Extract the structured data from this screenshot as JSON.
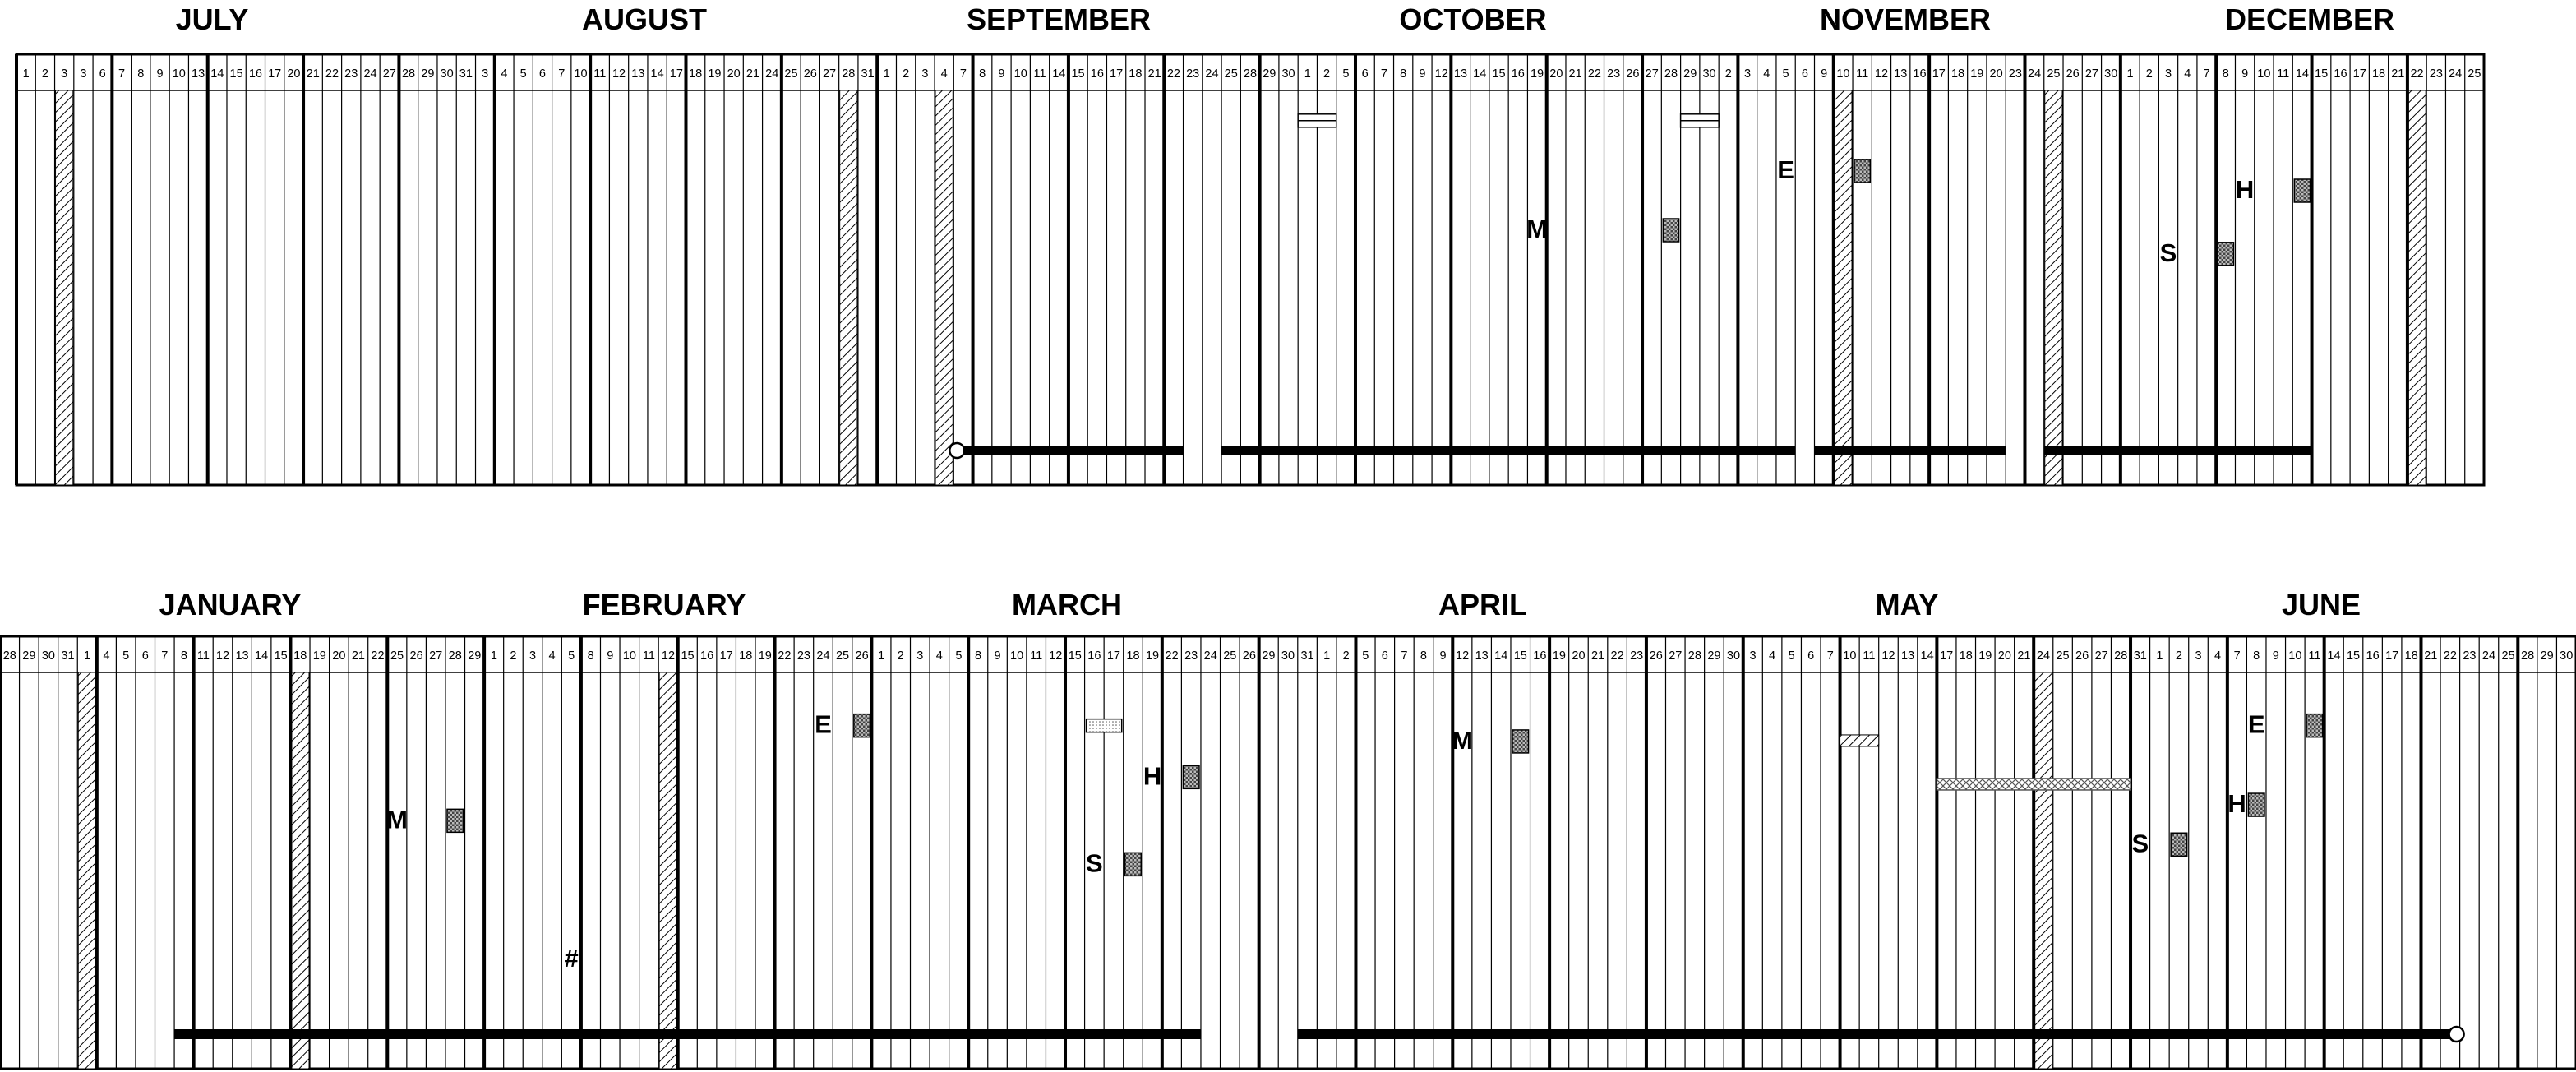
{
  "rows": [
    {
      "months": [
        {
          "name": "JULY"
        },
        {
          "name": "AUGUST"
        },
        {
          "name": "SEPTEMBER"
        },
        {
          "name": "OCTOBER"
        },
        {
          "name": "NOVEMBER"
        },
        {
          "name": "DECEMBER"
        }
      ],
      "days": [
        "1",
        "2",
        "3",
        "3",
        "6",
        "7",
        "8",
        "9",
        "10",
        "13",
        "14",
        "15",
        "16",
        "17",
        "20",
        "21",
        "22",
        "23",
        "24",
        "27",
        "28",
        "29",
        "30",
        "31",
        "3",
        "4",
        "5",
        "6",
        "7",
        "10",
        "11",
        "12",
        "13",
        "14",
        "17",
        "18",
        "19",
        "20",
        "21",
        "24",
        "25",
        "26",
        "27",
        "28",
        "31",
        "1",
        "2",
        "3",
        "4",
        "7",
        "8",
        "9",
        "10",
        "11",
        "14",
        "15",
        "16",
        "17",
        "18",
        "21",
        "22",
        "23",
        "24",
        "25",
        "28",
        "29",
        "30",
        "1",
        "2",
        "5",
        "6",
        "7",
        "8",
        "9",
        "12",
        "13",
        "14",
        "15",
        "16",
        "19",
        "20",
        "21",
        "22",
        "23",
        "26",
        "27",
        "28",
        "29",
        "30",
        "2",
        "3",
        "4",
        "5",
        "6",
        "9",
        "10",
        "11",
        "12",
        "13",
        "16",
        "17",
        "18",
        "19",
        "20",
        "23",
        "24",
        "25",
        "26",
        "27",
        "30",
        "1",
        "2",
        "3",
        "4",
        "7",
        "8",
        "9",
        "10",
        "11",
        "14",
        "15",
        "16",
        "17",
        "18",
        "21",
        "22",
        "23",
        "24",
        "25"
      ],
      "markers": [
        {
          "letter": "M",
          "col": 79,
          "level": 0.35,
          "box_col": 86
        },
        {
          "letter": "E",
          "col": 92,
          "level": 0.2,
          "box_col": 96
        },
        {
          "letter": "H",
          "col": 116,
          "level": 0.25,
          "box_col": 119
        },
        {
          "letter": "S",
          "col": 112,
          "level": 0.41,
          "box_col": 115
        }
      ]
    },
    {
      "months": [
        {
          "name": "JANUARY"
        },
        {
          "name": "FEBRUARY"
        },
        {
          "name": "MARCH"
        },
        {
          "name": "APRIL"
        },
        {
          "name": "MAY"
        },
        {
          "name": "JUNE"
        }
      ],
      "days": [
        "28",
        "29",
        "30",
        "31",
        "1",
        "4",
        "5",
        "6",
        "7",
        "8",
        "11",
        "12",
        "13",
        "14",
        "15",
        "18",
        "19",
        "20",
        "21",
        "22",
        "25",
        "26",
        "27",
        "28",
        "29",
        "1",
        "2",
        "3",
        "4",
        "5",
        "8",
        "9",
        "10",
        "11",
        "12",
        "15",
        "16",
        "17",
        "18",
        "19",
        "22",
        "23",
        "24",
        "25",
        "26",
        "1",
        "2",
        "3",
        "4",
        "5",
        "8",
        "9",
        "10",
        "11",
        "12",
        "15",
        "16",
        "17",
        "18",
        "19",
        "22",
        "23",
        "24",
        "25",
        "26",
        "29",
        "30",
        "31",
        "1",
        "2",
        "5",
        "6",
        "7",
        "8",
        "9",
        "12",
        "13",
        "14",
        "15",
        "16",
        "19",
        "20",
        "21",
        "22",
        "23",
        "26",
        "27",
        "28",
        "29",
        "30",
        "3",
        "4",
        "5",
        "6",
        "7",
        "10",
        "11",
        "12",
        "13",
        "14",
        "17",
        "18",
        "19",
        "20",
        "21",
        "24",
        "25",
        "26",
        "27",
        "28",
        "31",
        "1",
        "2",
        "3",
        "4",
        "7",
        "8",
        "9",
        "10",
        "11",
        "14",
        "15",
        "16",
        "17",
        "18",
        "21",
        "22",
        "23",
        "24",
        "25",
        "28",
        "29",
        "30"
      ],
      "markers": [
        {
          "letter": "M",
          "col": 20,
          "level": 0.37,
          "box_col": 23
        },
        {
          "letter": "#",
          "col": 29,
          "level": 0.72,
          "box_col": null
        },
        {
          "letter": "E",
          "col": 42,
          "level": 0.13,
          "box_col": 44
        },
        {
          "letter": "H",
          "col": 59,
          "level": 0.26,
          "box_col": 61
        },
        {
          "letter": "S",
          "col": 56,
          "level": 0.48,
          "box_col": 58
        },
        {
          "letter": "M",
          "col": 75,
          "level": 0.17,
          "box_col": 78
        },
        {
          "letter": "E",
          "col": 116,
          "level": 0.13,
          "box_col": 119
        },
        {
          "letter": "H",
          "col": 115,
          "level": 0.33,
          "box_col": 116
        },
        {
          "letter": "S",
          "col": 110,
          "level": 0.43,
          "box_col": 112
        }
      ]
    }
  ]
}
